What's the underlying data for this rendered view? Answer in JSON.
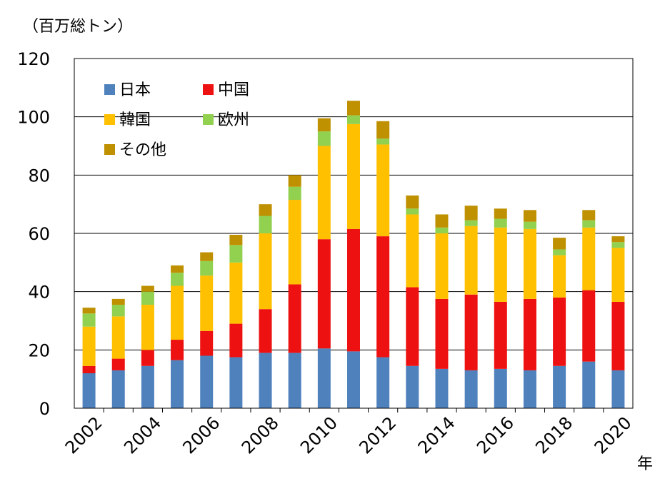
{
  "chart_data": {
    "type": "bar",
    "stacked": true,
    "title": "",
    "ylabel": "（百万総トン）",
    "xlabel": "年",
    "ylim": [
      0,
      120
    ],
    "yticks": [
      0,
      20,
      40,
      60,
      80,
      100,
      120
    ],
    "grid": true,
    "legend_position": "top-left",
    "categories": [
      "2002",
      "2003",
      "2004",
      "2005",
      "2006",
      "2007",
      "2008",
      "2009",
      "2010",
      "2011",
      "2012",
      "2013",
      "2014",
      "2015",
      "2016",
      "2017",
      "2018",
      "2019",
      "2020"
    ],
    "xtick_labels": [
      "2002",
      "2004",
      "2006",
      "2008",
      "2010",
      "2012",
      "2014",
      "2016",
      "2018",
      "2020"
    ],
    "series": [
      {
        "name": "日本",
        "color": "#4f81bd",
        "values": [
          12,
          13,
          14.5,
          16.5,
          18,
          17.5,
          19,
          19,
          20.5,
          19.5,
          17.5,
          14.5,
          13.5,
          13,
          13.5,
          13,
          14.5,
          16,
          13
        ]
      },
      {
        "name": "中国",
        "color": "#ee1111",
        "values": [
          2.5,
          4,
          5.5,
          7,
          8.5,
          11.5,
          15,
          23.5,
          37.5,
          42,
          41.5,
          27,
          24,
          26,
          23,
          24.5,
          23.5,
          24.5,
          23.5
        ]
      },
      {
        "name": "韓国",
        "color": "#ffc000",
        "values": [
          13.5,
          14.5,
          15.5,
          18.5,
          19,
          21,
          26,
          29,
          32,
          36,
          31.5,
          25,
          22.5,
          23.5,
          25.5,
          24,
          14.5,
          21.5,
          18.5
        ]
      },
      {
        "name": "欧州",
        "color": "#92d050",
        "values": [
          4.5,
          4,
          4.5,
          4.5,
          5,
          6,
          6,
          4.5,
          5,
          3,
          2,
          2,
          2,
          2,
          3,
          2.5,
          2,
          2.5,
          2
        ]
      },
      {
        "name": "その他",
        "color": "#bf9000",
        "values": [
          2,
          2,
          2,
          2.5,
          3,
          3.5,
          4,
          4,
          4.5,
          5,
          6,
          4.5,
          4.5,
          5,
          3.5,
          4,
          4,
          3.5,
          2
        ]
      }
    ]
  }
}
